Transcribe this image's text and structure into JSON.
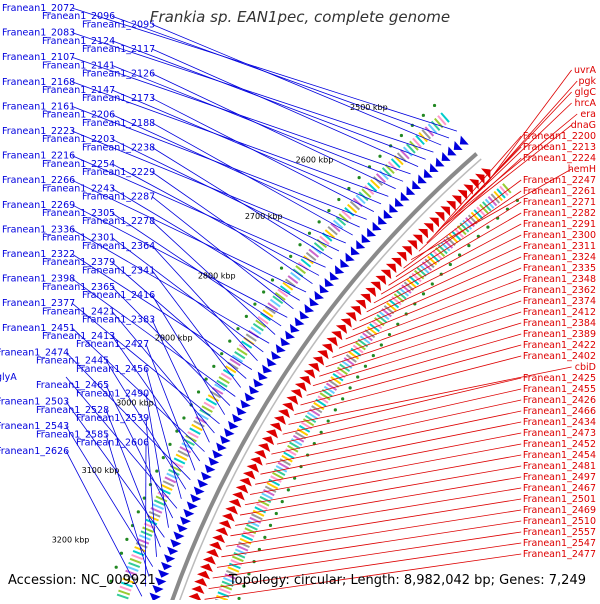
{
  "title": "Frankia sp. EAN1pec, complete genome",
  "footer": {
    "accession": "Accession: NC_009921",
    "summary": "Topology: circular; Length: 8,982,042 bp; Genes: 7,249"
  },
  "colors": {
    "forward": "#0000dd",
    "reverse": "#dd0000",
    "backbone": "#8a8a8a",
    "tick_mark": "#228822"
  },
  "scale_labels": [
    "2500 kbp",
    "2600 kbp",
    "2700 kbp",
    "2800 kbp",
    "2900 kbp",
    "3000 kbp",
    "3100 kbp",
    "3200 kbp"
  ],
  "forward_genes": [
    "Franean1_2072",
    "Franean1_2096",
    "Franean1_2095",
    "Franean1_2083",
    "Franean1_2124",
    "Franean1_2117",
    "Franean1_2107",
    "Franean1_2141",
    "Franean1_2126",
    "Franean1_2168",
    "Franean1_2147",
    "Franean1_2173",
    "Franean1_2161",
    "Franean1_2206",
    "Franean1_2188",
    "Franean1_2223",
    "Franean1_2203",
    "Franean1_2238",
    "Franean1_2216",
    "Franean1_2254",
    "Franean1_2229",
    "Franean1_2266",
    "Franean1_2243",
    "Franean1_2287",
    "Franean1_2269",
    "Franean1_2305",
    "Franean1_2278",
    "Franean1_2336",
    "Franean1_2301",
    "Franean1_2364",
    "Franean1_2322",
    "Franean1_2379",
    "Franean1_2341",
    "Franean1_2398",
    "Franean1_2365",
    "Franean1_2416",
    "Franean1_2377",
    "Franean1_2421",
    "Franean1_2383",
    "Franean1_2451",
    "Franean1_2413",
    "Franean1_2427",
    "Franean1_2474",
    "Franean1_2445",
    "Franean1_2456",
    "glyA",
    "Franean1_2465",
    "Franean1_2490",
    "Franean1_2503",
    "Franean1_2528",
    "Franean1_2539",
    "Franean1_2543",
    "Franean1_2585",
    "Franean1_2606",
    "Franean1_2626"
  ],
  "reverse_genes": [
    "uvrA",
    "pgk",
    "glgC",
    "hrcA",
    "era",
    "dnaG",
    "Franean1_2200",
    "Franean1_2213",
    "Franean1_2224",
    "hemH",
    "Franean1_2247",
    "Franean1_2261",
    "Franean1_2271",
    "Franean1_2282",
    "Franean1_2291",
    "Franean1_2300",
    "Franean1_2311",
    "Franean1_2324",
    "Franean1_2335",
    "Franean1_2348",
    "Franean1_2362",
    "Franean1_2374",
    "Franean1_2412",
    "Franean1_2384",
    "Franean1_2389",
    "Franean1_2422",
    "Franean1_2402",
    "cbiD",
    "Franean1_2425",
    "Franean1_2455",
    "Franean1_2426",
    "Franean1_2466",
    "Franean1_2434",
    "Franean1_2473",
    "Franean1_2452",
    "Franean1_2454",
    "Franean1_2481",
    "Franean1_2497",
    "Franean1_2467",
    "Franean1_2501",
    "Franean1_2469",
    "Franean1_2510",
    "Franean1_2557",
    "Franean1_2547",
    "Franean1_2477"
  ]
}
